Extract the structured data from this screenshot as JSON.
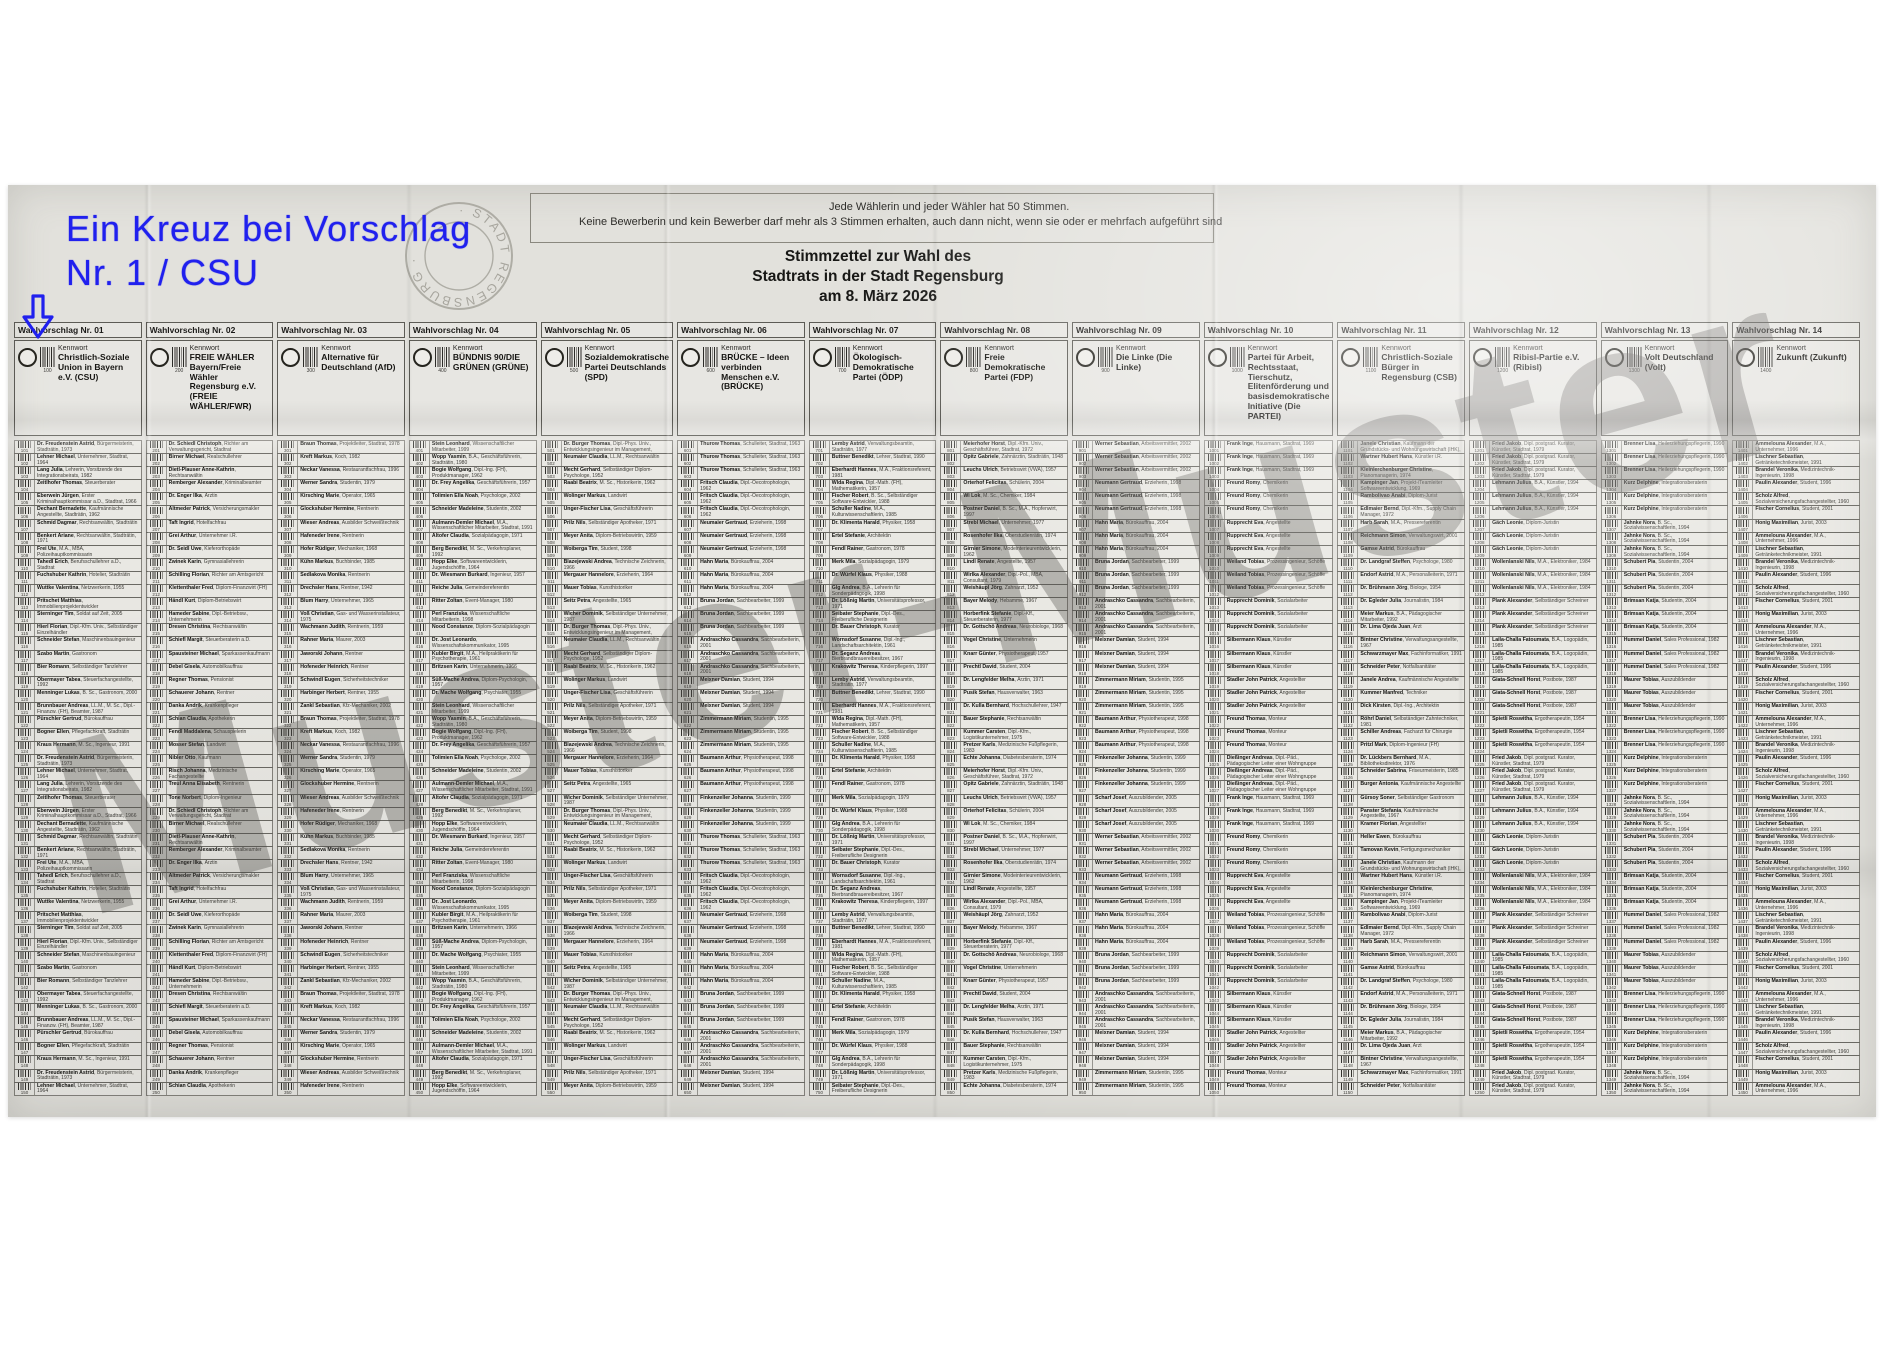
{
  "annotation": {
    "line1": "Ein Kreuz bei Vorschlag",
    "line2": "Nr. 1 / CSU",
    "color": "#2020ee"
  },
  "notice": {
    "line1": "Jede Wählerin und jeder Wähler hat 50 Stimmen.",
    "line2": "Keine Bewerberin und kein Bewerber darf mehr als 3 Stimmen erhalten, auch dann nicht, wenn sie oder er mehrfach aufgeführt sind"
  },
  "title": {
    "line1": "Stimmzettel zur Wahl des",
    "line2": "Stadtrats in der Stadt Regensburg",
    "line3": "am 8. März 2026"
  },
  "stamp": {
    "text": "· STADT REGENSBURG ·"
  },
  "watermark": "Muster-Muster",
  "labels": {
    "kennwort": "Kennwort"
  },
  "columns": [
    {
      "header": "Wahlvorschlag Nr. 01",
      "code": "100",
      "party": "Christlich-Soziale Union in Bayern e.V. (CSU)",
      "repeat": 1,
      "candidates": [
        "Dr. Freudenstein Astrid, Bürgermeisterin, Stadträtin, 1973",
        "Lehner Michael, Unternehmer, Stadtrat, 1964",
        "Lang Julia, Lehrerin, Vorsitzende des Integrationsbeirats, 1982",
        "Zeitlhofer Thomas, Steuerberater",
        "Eberwein Jürgen, Erster Kriminalhauptkommissar a.D., Stadtrat, 1966",
        "Dechant Bernadette, Kaufmännische Angestellte, Stadträtin, 1962",
        "Schmid Dagmar, Rechtsanwältin, Stadträtin",
        "Benkert Ariane, Rechtsanwältin, Stadträtin, 1971",
        "Frei Ute, M.A., MBA, Polizeihauptkommissarin",
        "Tahedl Erich, Berufsschullehrer a.D., Stadtrat",
        "Fuchshuber Kathrin, Hotelier, Stadträtin",
        "Wuttke Valentina, Netzwerkerin, 1955",
        "Pritschet Matthias, Immobilienprojektentwickler",
        "Sterninger Tim, Soldat auf Zeit, 2005",
        "Hierl Florian, Dipl.-Kfm. Univ., Selbständiger Einzelhändler",
        "Schneider Stefan, Maschinenbauingenieur",
        "Szabo Martin, Gastronom",
        "Bier Romann, Selbständiger Tanzlehrer",
        "Obermayer Tabea, Steuerfachangestellte, 1992",
        "Menninger Lukas, B. Sc., Gastronom, 2000",
        "Brunnbauer Andreas, LL.M., M. Sc., Dipl.-Finanzw. (FH), Beamter, 1987",
        "Pürschler Gertrud, Bürokauffrau",
        "Bogner Ellen, Pflegefachkraft, Stadträtin",
        "Kraus Hermann, M. Sc., Ingenieur, 1991"
      ]
    },
    {
      "header": "Wahlvorschlag Nr. 02",
      "code": "200",
      "party": "FREIE WÄHLER Bayern/Freie Wähler Regensburg e.V. (FREIE WÄHLER/FWR)",
      "repeat": 1,
      "candidates": [
        "Dr. Schiedl Christoph, Richter am Verwaltungsgericht, Stadtrat",
        "Birner Michael, Realschullehrer",
        "Dietl-Plauser Anne-Kathrin, Rechtsanwältin",
        "Remberger Alexander, Kriminalbeamter",
        "Dr. Enger Ilka, Ärztin",
        "Altmeder Patrick, Versicherungsmakler",
        "Taft Ingrid, Hotelfachfrau",
        "Grei Arthur, Unternehmer i.R.",
        "Dr. Seidl Uwe, Kieferorthopäde",
        "Zwinek Karin, Gymnasiallehrerin",
        "Schilling Florian, Richter am Amtsgericht",
        "Klettenthaler Fred, Diplom-Finanzwirt (FH)",
        "Händl Kurt, Diplom-Betriebswirt",
        "Hameder Sabine, Dipl.-Betriebsw., Unternehmerin",
        "Dresen Christina, Rechtsanwältin",
        "Schiefl Margit, Steuerberaterin a.D.",
        "Spausteiner Michael, Sparkassenkaufmann",
        "Debel Gisela, Automobilkauffrau",
        "Regner Thomas, Pensionist",
        "Schauerer Johann, Rentner",
        "Danka Andrik, Krankenpfleger",
        "Schian Claudia, Apothekerin",
        "Fendl Maddalena, Schauspielerin",
        "Mosser Stefan, Landwirt",
        "Nibler Otto, Kaufmann",
        "Risch Johanna, Medizinische Fachangestellte",
        "Treul Anna Elisabeth, Rentnerin",
        "Tone Norbert, Diplom-Ingenieur"
      ]
    },
    {
      "header": "Wahlvorschlag Nr. 03",
      "code": "300",
      "party": "Alternative für Deutschland (AfD)",
      "repeat": 1,
      "candidates": [
        "Braun Thomas, Projektleiter, Stadtrat, 1978",
        "Kreft Markus, Koch, 1982",
        "Neckar Vanessa, Restaurantfachfrau, 1996",
        "Werner Sandra, Studentin, 1979",
        "Kirsching Marie, Operator, 1965",
        "Glockshuber Hermine, Rentnerin",
        "Wieser Andreas, Ausbilder Schweißtechnik",
        "Hafeneder Irene, Rentnerin",
        "Hofer Rüdiger, Mechaniker, 1968",
        "Kühn Markus, Buchbinder, 1985",
        "Sedlakova Monika, Rentnerin",
        "Drechsler Hans, Rentner, 1942",
        "Blum Harry, Unternehmer, 1965",
        "Voß Christian, Gas- und Wasserinstallateur, 1975",
        "Wachmann Judith, Rentnerin, 1959",
        "Rahner Maria, Maurer, 2003",
        "Jaworski Johann, Rentner",
        "Hofeneder Heinrich, Rentner",
        "Schwindl Eugen, Sicherheitstechniker",
        "Harbinger Herbert, Rentner, 1955",
        "Zankl Sebastian, Kfz-Mechaniker, 2002"
      ]
    },
    {
      "header": "Wahlvorschlag Nr. 04",
      "code": "400",
      "party": "BÜNDNIS 90/DIE GRÜNEN (GRÜNE)",
      "repeat": 1,
      "candidates": [
        "Stein Leonhard, Wissenschaftlicher Mitarbeiter, 1999",
        "Wopp Yasmin, B.A., Geschäftsführerin, Stadträtin, 1980",
        "Bogie Wolfgang, Dipl.-Ing. (FH), Produktmanager, 1962",
        "Dr. Frey Angelika, Geschäftsführerin, 1957",
        "Tolimien Ella Noah, Psychologe, 2002",
        "Schneider Madeleine, Studentin, 2002",
        "Aulmann-Demler Michael, M.A., Wissenschaftlicher Mitarbeiter, Stadtrat, 1991",
        "Altofer Claudia, Sozialpädagogin, 1971",
        "Berg Benedikt, M. Sc., Verkehrsplaner, 1992",
        "Hopp Elke, Softwareentwicklerin, Jugendschöffin, 1964",
        "Dr. Wiesmann Burkard, Ingenieur, 1957",
        "Reiche Julia, Gemeindereferentin",
        "Ritter Zoltan, Event-Manager, 1980",
        "Perl Franziska, Wissenschaftliche Mitarbeiterin, 1998",
        "Nood Constanze, Diplom-Sozialpädagogin",
        "Dr. Jost Leonardo, Wissenschaftskommunikator, 1995",
        "Kubler Birgit, M.A., Heilpraktikerin für Psychotherapie, 1961",
        "Britzsen Karin, Unternehmerin, 1966",
        "Süß-Mache Andrea, Diplom-Psychologin, 1957",
        "Dr. Mache Wolfgang, Psychiater, 1955"
      ]
    },
    {
      "header": "Wahlvorschlag Nr. 05",
      "code": "500",
      "party": "Sozialdemokratische Partei Deutschlands (SPD)",
      "repeat": 1,
      "candidates": [
        "Dr. Burger Thomas, Dipl.-Phys. Univ., Entwicklungsingenieur im Management, Stadtrat, 1973",
        "Neumaier Claudia, LL.M., Rechtsanwältin",
        "Mecht Gerhard, Selbständiger Diplom-Psychologe, 1952",
        "Raabi Beatrix, M. Sc., Historikerin, 1962",
        "Wolinger Markus, Landwirt",
        "Unger-Fischer Lisa, Geschäftsführerin",
        "Prilz Nils, Selbständiger Apotheker, 1971",
        "Meyer Anita, Diplom-Betriebswirtin, 1959",
        "Woiberga Tim, Student, 1998",
        "Blazejewski Andrea, Technische Zeichnerin, 1966",
        "Mergauer Hannelore, Erzieherin, 1964",
        "Mauer Tobias, Kunsthistoriker",
        "Seitz Petra, Angestellte, 1965",
        "Wicher Dominik, Selbständiger Unternehmer, 1987"
      ]
    },
    {
      "header": "Wahlvorschlag Nr. 06",
      "code": "600",
      "party": "BRÜCKE – Ideen verbinden Menschen e.V. (BRÜCKE)",
      "repeat": 3,
      "candidates": [
        "Thurow Thomas, Schulleiter, Stadtrat, 1963",
        "Fritsch Claudia, Dipl.-Oecotrophologin, 1962",
        "Neumaier Gertraud, Erzieherin, 1998",
        "Hahn Maria, Bürokauffrau, 2004",
        "Bruna Jordan, Sachbearbeiter, 1999",
        "Andraschko Cassandra, Sachbearbeiterin, 2001",
        "Meixner Damian, Student, 1994",
        "Zimmermann Miriam, Studentin, 1995",
        "Baumann Arthur, Physiotherapeut, 1998",
        "Finkenzeller Johanna, Studentin, 1999"
      ]
    },
    {
      "header": "Wahlvorschlag Nr. 07",
      "code": "700",
      "party": "Ökologisch-Demokratische Partei (ÖDP)",
      "repeat": 1,
      "candidates": [
        "Lemby Astrid, Verwaltungsbeamtin, Stadträtin, 1977",
        "Buttner Benedikt, Lehrer, Stadtrat, 1990",
        "Eberhardt Hannes, M.A., Fraktionsreferent, 1981",
        "Wlda Regina, Dipl.-Math. (FH), Mathematikerin, 1957",
        "Fischer Robert, B. Sc., Selbständiger Software-Entwickler, 1988",
        "Schuller Nadine, M.A., Kulturwissenschaftlerin, 1985",
        "Dr. Klimenta Harald, Physiker, 1958",
        "Ertel Stefanie, Architektin",
        "Fendl Rainer, Gastronom, 1978",
        "Merk Mila, Sozialpädagogin, 1979",
        "Dr. Würfel Klaus, Physiker, 1988",
        "Glg Andrea, B.A., Lehrerin für Sonderpädagogik, 1998",
        "Dr. Lößnig Martin, Universitätsprofessor, 1971",
        "Seibater Stephanie, Dipl.-Des., Freiberufliche Designerin",
        "Dr. Bauer Christoph, Kurator",
        "Wornsdorf Susanne, Dipl.-Ing., Landschaftsarchitektin, 1961",
        "Dr. Seganz Andreas, Bierbrandbrauereibesitzer, 1967",
        "Krakowitz Theresa, Kinderpflegerin, 1997"
      ]
    },
    {
      "header": "Wahlvorschlag Nr. 08",
      "code": "800",
      "party": "Freie Demokratische Partei (FDP)",
      "repeat": 1,
      "candidates": [
        "Meierhofer Horst, Dipl.-Kfm. Univ., Geschäftsführer, Stadtrat, 1972",
        "Opitz Gabriele, Zahnärztin, Stadträtin, 1948",
        "Leuchs Ulrich, Betriebswirt (VWA), 1957",
        "Orterhof Felicitas, Schülerin, 2004",
        "Wi Lok, M. Sc., Chemiker, 1984",
        "Postner Daniel, B. Sc., M.A., Hopfenwirt, 1997",
        "Strebl Michael, Unternehmer, 1977",
        "Rosenhofer Ilka, Oberstudienrätin, 1974",
        "Girnier Simone, Modeinterieurentwicklerin, 1962",
        "Lindl Renate, Angestellte, 1957",
        "Wirlka Alexander, Dipl.-Pol., MBA, Consultant, 1979",
        "Weishäupl Jörg, Zahnarzt, 1952",
        "Bayer Melody, Hebamme, 1967",
        "Horberfink Stefanie, Dipl.-Kff., Steuerberaterin, 1977",
        "Dr. Gottschö Andreas, Neurobiologe, 1968",
        "Vogel Christine, Unternehmerin",
        "Knarr Günter, Physiotherapeut, 1957",
        "Prechtl David, Student, 2004",
        "Dr. Lengfelder Melha, Ärztin, 1971",
        "Pusik Stefan, Hausverwalter, 1963",
        "Dr. Kulla Bernhard, Hochschullehrer, 1947",
        "Bauer Stephanie, Rechtsanwältin",
        "Kummer Carsten, Dipl.-Kfm., Logistikunternehmer, 1975",
        "Pretzer Karls, Medizinische Fußpflegerin, 1983",
        "Echte Johanna, Diabetesberaterin, 1974"
      ]
    },
    {
      "header": "Wahlvorschlag Nr. 09",
      "code": "900",
      "party": "Die Linke (Die Linke)",
      "repeat": 3,
      "candidates": [
        "Werner Sebastian, Arbeitsvermittler, 2002",
        "Neumann Gertraud, Erzieherin, 1998",
        "Hahn Maria, Bürokauffrau, 2004",
        "Bruna Jordan, Sachbearbeiter, 1999",
        "Andraschko Cassandra, Sachbearbeiterin, 2001",
        "Meixner Damian, Student, 1994",
        "Zimmermann Miriam, Studentin, 1995",
        "Baumann Arthur, Physiotherapeut, 1998",
        "Finkenzeller Johanna, Studentin, 1999",
        "Scharf Josef, Auszubildender, 2005"
      ]
    },
    {
      "header": "Wahlvorschlag Nr. 10",
      "code": "1000",
      "party": "Partei für Arbeit, Rechtsstaat, Tierschutz, Elitenförderung und basisdemokratische Initiative (Die PARTEI)",
      "repeat": 3,
      "candidates": [
        "Frank Inge, Hausmann, Stadtrat, 1969",
        "Freund Romy, Chemikerin",
        "Rupprecht Eva, Angestellte",
        "Weiland Tobias, Prozessingenieur, Schöffe",
        "Rupprecht Dominik, Sozialarbeiter",
        "Silbermann Klaus, Künstler",
        "Stadler John Patrick, Angestellter",
        "Freund Thomas, Monteur",
        "Dießinger Andreas, Dipl.-Päd., Pädagogischer Leiter einer Wohngruppe"
      ]
    },
    {
      "header": "Wahlvorschlag Nr. 11",
      "code": "1100",
      "party": "Christlich-Soziale Bürger in Regensburg (CSB)",
      "repeat": 1,
      "candidates": [
        "Janele Christian, Kaufmann der Grundstücks- und Wohnungswirtschaft (IHK), Stadtrat",
        "Wartner Hubert Hans, Künstler i.R.",
        "Kleinlerchenburger Christine, Pianomanagerin, 1974",
        "Kampinger Jan, Projekt-/Teamleiter Softwareentwicklung, 1969",
        "Rambolivao Anabi, Diplom-Jurist",
        "Edlmaier Bernd, Dipl.-Kfm., Supply Chain Manager, 1972",
        "Harb Sarah, M.A., Pressereferentin",
        "Reichmann Simon, Verwaltungswirt, 2001",
        "Gamse Astrid, Bürokauffrau",
        "Dr. Landgraf Steffen, Psychologe, 1980",
        "Endorf Astrid, M.A., Personalleiterin, 1971",
        "Dr. Brühmann Jörg, Biologe, 1954",
        "Dr. Egleder Julia, Journalistin, 1984",
        "Meier Markus, B.A., Pädagogischer Mitarbeiter, 1992",
        "Dr. Lima Ojeda Juan, Arzt",
        "Bintner Christine, Verwaltungsangestellte, 1967",
        "Schwarzmayer Max, Fachinformatiker, 1991",
        "Schneider Peter, Notfallsanitäter",
        "Janele Andrea, Kaufmännische Angestellte",
        "Kummer Manfred, Techniker",
        "Dick Kirsten, Dipl.-Ing., Architektin",
        "Röhrl Daniel, Selbständiger Zahntechniker, 1981",
        "Schiller Andreas, Facharzt für Chirurgie",
        "Pritzl Mark, Diplom-Ingenieur (FH)",
        "Dr. Lückbers Bernhard, M.A., Bibliotheksdirektor, 1976",
        "Schneider Sabrina, Friseurmeisterin, 1985",
        "Burger Antonia, Kaufmännische Angestellte",
        "Gürsoy Soner, Selbständiger Gastronom",
        "Panster Stefania, Kaufmännische Angestellte, 1967",
        "Kramer Florian, Angestellter",
        "Heller Ewen, Bürokauffrau",
        "Tamovan Kevin, Fertigungsmechaniker"
      ]
    },
    {
      "header": "Wahlvorschlag Nr. 12",
      "code": "1200",
      "party": "Ribisl-Partie e.V. (Ribisl)",
      "repeat": 3,
      "candidates": [
        "Fried Jakob, Dipl. postgrad. Kurator, Künstler, Stadtrat, 1979",
        "Lehmann Julius, B.A., Künstler, 1994",
        "Gäch Leonie, Diplom-Juristin",
        "Wollenlanski Nils, M.A., Elektroniker, 1984",
        "Plank Alexander, Selbständiger Schreiner",
        "Laila-Challa Fatoumata, B.A., Logopädin, 1985",
        "Giata-Schnell Horst, Postbote, 1987",
        "Spietli Roswitha, Ergotherapeutin, 1954"
      ]
    },
    {
      "header": "Wahlvorschlag Nr. 13",
      "code": "1300",
      "party": "Volt Deutschland (Volt)",
      "repeat": 3,
      "candidates": [
        "Brenner Lisa, Heilerziehungspflegerin, 1990",
        "Kurz Delphine, Integrationsberaterin",
        "Jahnke Nora, B. Sc., Sozialwissenschaftlerin, 1994",
        "Schubert Pia, Studentin, 2004",
        "Brimsan Katja, Studentin, 2004",
        "Hummel Daniel, Sales Professional, 1982",
        "Maurer Tobias, Auszubildender"
      ]
    },
    {
      "header": "Wahlvorschlag Nr. 14",
      "code": "1400",
      "party": "Zukunft (Zukunft)",
      "repeat": 1,
      "candidates": [
        "Ammelouna Alexander, M.A., Unternehmer, 1996",
        "Lischner Sebastian, Getränketechnikmeister, 1991",
        "Brandel Veronika, Medizintechnik-Ingenieurin, 1998",
        "Paulin Alexander, Student, 1996",
        "Scholz Alfred, Sozialversicherungsfachangestellter, 1960",
        "Fischer Cornelius, Student, 2001",
        "Honig Maximilian, Jurist, 2003"
      ]
    }
  ]
}
